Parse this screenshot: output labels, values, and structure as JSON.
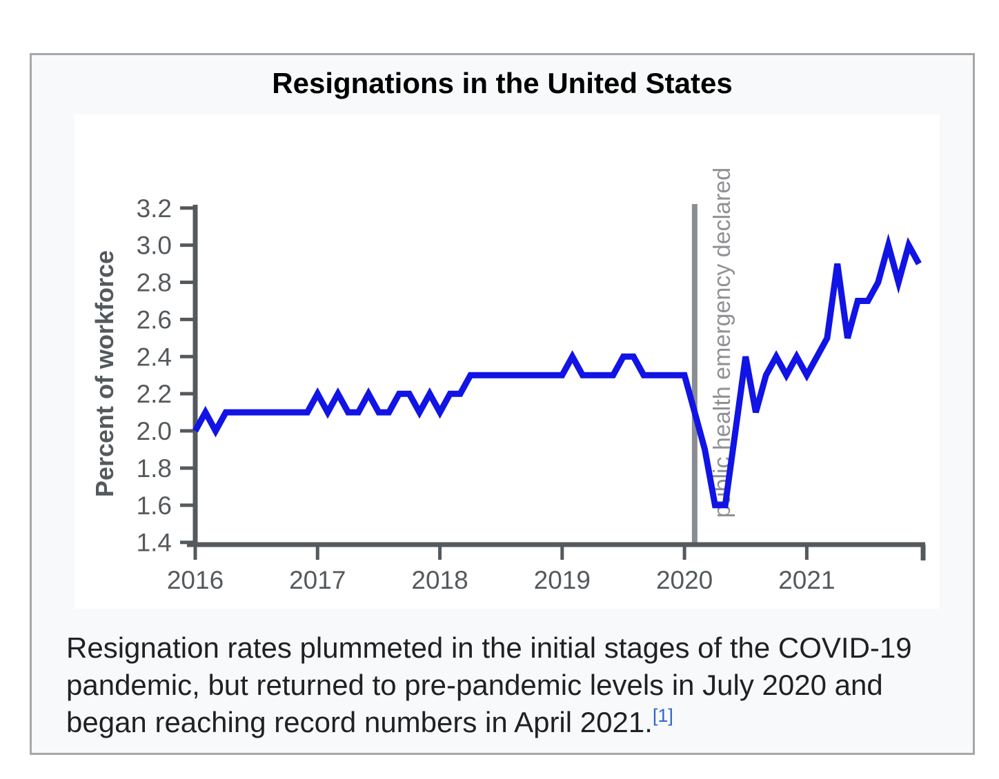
{
  "figure": {
    "title": "Resignations in the United States",
    "caption_text": "Resignation rates plummeted in the initial stages of the COVID-19 pandemic, but returned to pre-pandemic levels in July 2020 and began reaching record numbers in April 2021.",
    "caption_reference": "[1]"
  },
  "chart_data": {
    "type": "line",
    "title": "Resignations in the United States",
    "xlabel": "",
    "ylabel": "Percent of workforce",
    "ylim": [
      1.4,
      3.2
    ],
    "grid": false,
    "legend": "none",
    "x_range": {
      "start": "2016-01",
      "end": "2021-12",
      "interval": "monthly"
    },
    "x_tick_labels": [
      "2016",
      "2017",
      "2018",
      "2019",
      "2020",
      "2021"
    ],
    "y_tick_labels": [
      "1.4",
      "1.6",
      "1.8",
      "2.0",
      "2.2",
      "2.4",
      "2.6",
      "2.8",
      "3.0",
      "3.2"
    ],
    "annotation": {
      "label": "public health emergency declared",
      "date": "2020-02"
    },
    "colors": {
      "line": "#1114e4",
      "axis": "#54595d",
      "annotation_line": "#8a8e92",
      "annotation_text": "#8f9194",
      "card_background": "#f8f9fa",
      "card_border": "#a7a7a7",
      "reference_link": "#3366cc"
    },
    "series": [
      {
        "name": "resignation rate, percent of workforce",
        "start_year": 2016,
        "values_by_year": {
          "2016": [
            2.0,
            2.1,
            2.0,
            2.1,
            2.1,
            2.1,
            2.1,
            2.1,
            2.1,
            2.1,
            2.1,
            2.1
          ],
          "2017": [
            2.2,
            2.1,
            2.2,
            2.1,
            2.1,
            2.2,
            2.1,
            2.1,
            2.2,
            2.2,
            2.1,
            2.2
          ],
          "2018": [
            2.1,
            2.2,
            2.2,
            2.3,
            2.3,
            2.3,
            2.3,
            2.3,
            2.3,
            2.3,
            2.3,
            2.3
          ],
          "2019": [
            2.3,
            2.4,
            2.3,
            2.3,
            2.3,
            2.3,
            2.4,
            2.4,
            2.3,
            2.3,
            2.3,
            2.3
          ],
          "2020": [
            2.3,
            2.1,
            1.9,
            1.6,
            1.6,
            2.0,
            2.4,
            2.1,
            2.3,
            2.4,
            2.3,
            2.4
          ],
          "2021": [
            2.3,
            2.4,
            2.5,
            2.9,
            2.5,
            2.7,
            2.7,
            2.8,
            3.0,
            2.8,
            3.0,
            2.9
          ]
        }
      }
    ]
  }
}
